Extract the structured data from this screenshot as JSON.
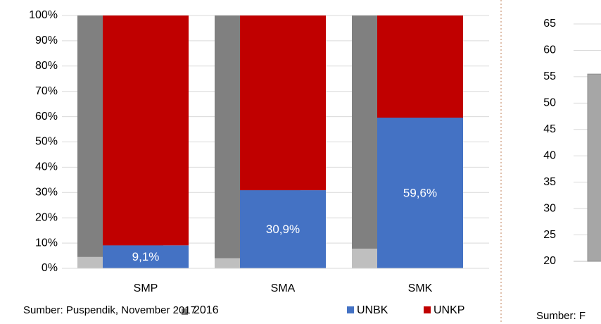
{
  "chart_data": [
    {
      "type": "bar",
      "stacked": true,
      "categories": [
        "SMP",
        "SMA",
        "SMK"
      ],
      "background_series": [
        {
          "color": "#bfbfbf",
          "values": [
            4.5,
            4,
            7.8
          ]
        },
        {
          "name": "2016",
          "color": "#808080",
          "values": [
            95.5,
            96,
            92.2
          ]
        }
      ],
      "series": [
        {
          "name": "UNBK",
          "color": "#4472c4",
          "values": [
            9.1,
            30.9,
            59.6
          ],
          "value_labels": [
            "9,1%",
            "30,9%",
            "59,6%"
          ]
        },
        {
          "name": "UNKP",
          "color": "#c00000",
          "values": [
            90.9,
            69.1,
            40.4
          ]
        }
      ],
      "ylim": [
        0,
        100
      ],
      "yticks": [
        {
          "value": 0,
          "label": "0%"
        },
        {
          "value": 10,
          "label": "10%"
        },
        {
          "value": 20,
          "label": "20%"
        },
        {
          "value": 30,
          "label": "30%"
        },
        {
          "value": 40,
          "label": "40%"
        },
        {
          "value": 50,
          "label": "50%"
        },
        {
          "value": 60,
          "label": "60%"
        },
        {
          "value": 70,
          "label": "70%"
        },
        {
          "value": 80,
          "label": "80%"
        },
        {
          "value": 90,
          "label": "90%"
        },
        {
          "value": 100,
          "label": "100%"
        }
      ],
      "grid": true,
      "source": "Sumber: Puspendik, November 2017"
    },
    {
      "type": "bar",
      "categories": [
        null
      ],
      "values": [
        55.5
      ],
      "color": "#a6a6a6",
      "ylim": [
        20,
        65
      ],
      "yticks": [
        20,
        25,
        30,
        35,
        40,
        45,
        50,
        55,
        60,
        65
      ],
      "grid": true,
      "source": "Sumber: F"
    }
  ]
}
